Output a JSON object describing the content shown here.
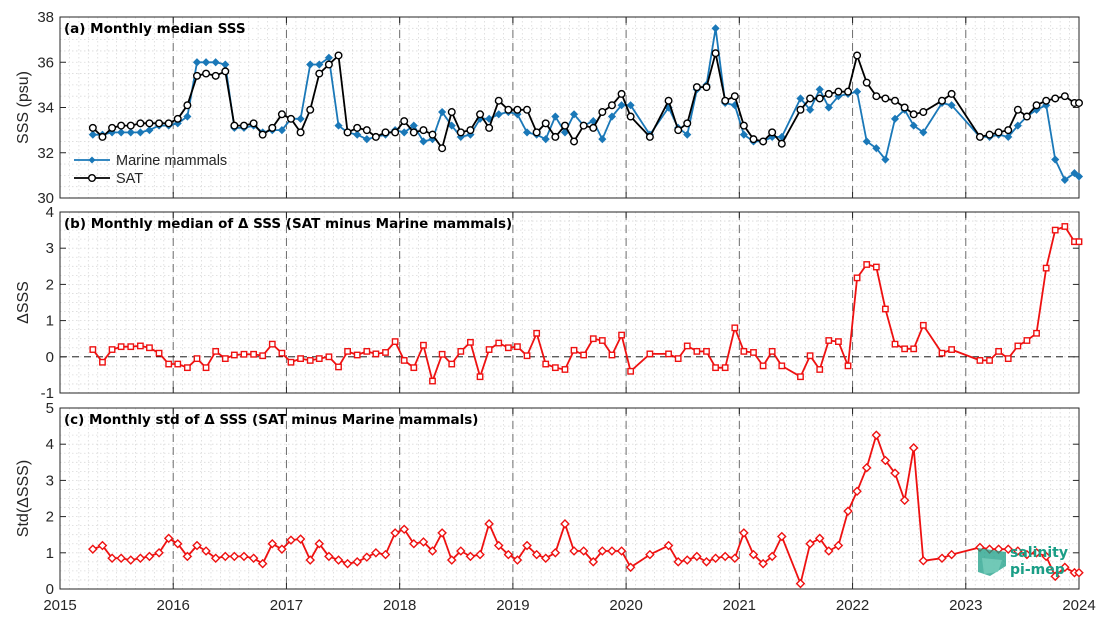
{
  "figure": {
    "xticks": [
      "2015",
      "2016",
      "2017",
      "2018",
      "2019",
      "2020",
      "2021",
      "2022",
      "2023",
      "2024"
    ],
    "watermark": [
      "salinity",
      "pi-mep"
    ]
  },
  "colors": {
    "mammals": "#1a78b8",
    "sat": "#000000",
    "delta": "#ee1111",
    "grid_minor": "#d9d9d9",
    "year_lines": "#6e6e6e",
    "watermark": "#1a9e86"
  },
  "chart_data": [
    {
      "type": "line",
      "title": "(a) Monthly median SSS",
      "ylabel": "SSS (psu)",
      "xlim": [
        2015,
        2024
      ],
      "ylim": [
        30,
        38
      ],
      "yticks": [
        "30",
        "32",
        "34",
        "36",
        "38"
      ],
      "legend_position": "bottom-left",
      "series": [
        {
          "name": "Marine mammals",
          "marker": "diamond",
          "color": "#1a78b8",
          "x": [
            2015.29,
            2015.375,
            2015.46,
            2015.54,
            2015.625,
            2015.71,
            2015.79,
            2015.875,
            2015.96,
            2016.04,
            2016.125,
            2016.21,
            2016.29,
            2016.375,
            2016.46,
            2016.54,
            2016.625,
            2016.71,
            2016.79,
            2016.875,
            2016.96,
            2017.04,
            2017.125,
            2017.21,
            2017.29,
            2017.375,
            2017.46,
            2017.54,
            2017.625,
            2017.71,
            2017.79,
            2017.875,
            2017.96,
            2018.04,
            2018.125,
            2018.21,
            2018.29,
            2018.375,
            2018.46,
            2018.54,
            2018.625,
            2018.71,
            2018.79,
            2018.875,
            2018.96,
            2019.04,
            2019.125,
            2019.21,
            2019.29,
            2019.375,
            2019.46,
            2019.54,
            2019.625,
            2019.71,
            2019.79,
            2019.875,
            2019.96,
            2020.04,
            2020.21,
            2020.375,
            2020.46,
            2020.54,
            2020.625,
            2020.71,
            2020.79,
            2020.875,
            2020.96,
            2021.04,
            2021.125,
            2021.21,
            2021.29,
            2021.375,
            2021.54,
            2021.625,
            2021.71,
            2021.79,
            2021.875,
            2021.96,
            2022.04,
            2022.125,
            2022.21,
            2022.29,
            2022.375,
            2022.46,
            2022.54,
            2022.625,
            2022.79,
            2022.875,
            2023.125,
            2023.21,
            2023.29,
            2023.375,
            2023.46,
            2023.54,
            2023.625,
            2023.71,
            2023.79,
            2023.875,
            2023.96
          ],
          "y": [
            32.8,
            32.8,
            32.9,
            32.9,
            32.9,
            32.9,
            33.0,
            33.2,
            33.2,
            33.3,
            33.6,
            36.0,
            36.0,
            36.0,
            35.9,
            33.1,
            33.1,
            33.2,
            32.9,
            33.0,
            33.0,
            33.5,
            33.5,
            35.9,
            35.9,
            36.2,
            33.2,
            32.9,
            32.8,
            32.6,
            32.7,
            32.8,
            33.0,
            32.9,
            33.2,
            32.5,
            32.6,
            33.8,
            33.2,
            32.7,
            32.8,
            33.5,
            33.5,
            33.7,
            33.8,
            33.7,
            32.9,
            32.8,
            32.6,
            33.6,
            32.9,
            33.7,
            33.2,
            33.4,
            32.6,
            33.6,
            34.1,
            34.1,
            32.8,
            34.0,
            33.1,
            32.8,
            34.8,
            35.0,
            37.5,
            34.2,
            34.1,
            32.8,
            32.5,
            32.5,
            32.7,
            32.7,
            34.4,
            33.9,
            34.8,
            34.0,
            34.5,
            34.6,
            34.7,
            32.5,
            32.2,
            31.7,
            33.5,
            33.9,
            33.2,
            32.9,
            34.2,
            34.1,
            32.7,
            32.7,
            32.8,
            32.7,
            33.2,
            33.6,
            33.9,
            34.1,
            31.7,
            30.8,
            31.1
          ],
          "x_extra": [
            2024.0
          ],
          "y_extra": [
            30.95
          ]
        },
        {
          "name": "SAT",
          "marker": "circle",
          "color": "#000000",
          "x": [
            2015.29,
            2015.375,
            2015.46,
            2015.54,
            2015.625,
            2015.71,
            2015.79,
            2015.875,
            2015.96,
            2016.04,
            2016.125,
            2016.21,
            2016.29,
            2016.375,
            2016.46,
            2016.54,
            2016.625,
            2016.71,
            2016.79,
            2016.875,
            2016.96,
            2017.04,
            2017.125,
            2017.21,
            2017.29,
            2017.375,
            2017.46,
            2017.54,
            2017.625,
            2017.71,
            2017.79,
            2017.875,
            2017.96,
            2018.04,
            2018.125,
            2018.21,
            2018.29,
            2018.375,
            2018.46,
            2018.54,
            2018.625,
            2018.71,
            2018.79,
            2018.875,
            2018.96,
            2019.04,
            2019.125,
            2019.21,
            2019.29,
            2019.375,
            2019.46,
            2019.54,
            2019.625,
            2019.71,
            2019.79,
            2019.875,
            2019.96,
            2020.04,
            2020.21,
            2020.375,
            2020.46,
            2020.54,
            2020.625,
            2020.71,
            2020.79,
            2020.875,
            2020.96,
            2021.04,
            2021.125,
            2021.21,
            2021.29,
            2021.375,
            2021.54,
            2021.625,
            2021.71,
            2021.79,
            2021.875,
            2021.96,
            2022.04,
            2022.125,
            2022.21,
            2022.29,
            2022.375,
            2022.46,
            2022.54,
            2022.625,
            2022.79,
            2022.875,
            2023.125,
            2023.21,
            2023.29,
            2023.375,
            2023.46,
            2023.54,
            2023.625,
            2023.71,
            2023.79,
            2023.875,
            2023.96,
            2024.0
          ],
          "y": [
            33.1,
            32.7,
            33.1,
            33.2,
            33.2,
            33.3,
            33.3,
            33.3,
            33.3,
            33.5,
            34.1,
            35.4,
            35.5,
            35.4,
            35.6,
            33.2,
            33.2,
            33.3,
            32.8,
            33.1,
            33.7,
            33.5,
            32.9,
            33.9,
            35.5,
            35.9,
            36.3,
            32.9,
            33.1,
            33.0,
            32.7,
            32.9,
            32.9,
            33.4,
            32.9,
            33.0,
            32.8,
            32.2,
            33.8,
            32.9,
            33.0,
            33.7,
            33.1,
            34.3,
            33.9,
            33.9,
            33.9,
            32.9,
            33.3,
            32.7,
            33.2,
            32.5,
            33.2,
            33.1,
            33.8,
            34.1,
            34.6,
            33.6,
            32.7,
            34.3,
            33.0,
            33.3,
            34.9,
            34.9,
            36.4,
            34.3,
            34.5,
            33.2,
            32.6,
            32.5,
            32.9,
            32.4,
            33.9,
            34.4,
            34.4,
            34.6,
            34.7,
            34.7,
            36.3,
            35.1,
            34.5,
            34.4,
            34.3,
            34.0,
            33.7,
            33.8,
            34.3,
            34.6,
            32.7,
            32.8,
            32.9,
            33.0,
            33.9,
            33.6,
            34.1,
            34.3,
            34.4,
            34.5,
            34.2,
            34.2
          ]
        }
      ]
    },
    {
      "type": "line",
      "title": "(b) Monthly median of Δ SSS (SAT minus Marine mammals)",
      "ylabel": "ΔSSS",
      "xlim": [
        2015,
        2024
      ],
      "ylim": [
        -1,
        4
      ],
      "yticks": [
        "-1",
        "0",
        "1",
        "2",
        "3",
        "4"
      ],
      "zero_line": true,
      "series": [
        {
          "name": "",
          "marker": "square",
          "color": "#ee1111",
          "x": [
            2015.29,
            2015.375,
            2015.46,
            2015.54,
            2015.625,
            2015.71,
            2015.79,
            2015.875,
            2015.96,
            2016.04,
            2016.125,
            2016.21,
            2016.29,
            2016.375,
            2016.46,
            2016.54,
            2016.625,
            2016.71,
            2016.79,
            2016.875,
            2016.96,
            2017.04,
            2017.125,
            2017.21,
            2017.29,
            2017.375,
            2017.46,
            2017.54,
            2017.625,
            2017.71,
            2017.79,
            2017.875,
            2017.96,
            2018.04,
            2018.125,
            2018.21,
            2018.29,
            2018.375,
            2018.46,
            2018.54,
            2018.625,
            2018.71,
            2018.79,
            2018.875,
            2018.96,
            2019.04,
            2019.125,
            2019.21,
            2019.29,
            2019.375,
            2019.46,
            2019.54,
            2019.625,
            2019.71,
            2019.79,
            2019.875,
            2019.96,
            2020.04,
            2020.21,
            2020.375,
            2020.46,
            2020.54,
            2020.625,
            2020.71,
            2020.79,
            2020.875,
            2020.96,
            2021.04,
            2021.125,
            2021.21,
            2021.29,
            2021.375,
            2021.54,
            2021.625,
            2021.71,
            2021.79,
            2021.875,
            2021.96,
            2022.04,
            2022.125,
            2022.21,
            2022.29,
            2022.375,
            2022.46,
            2022.54,
            2022.625,
            2022.79,
            2022.875,
            2023.125,
            2023.21,
            2023.29,
            2023.375,
            2023.46,
            2023.54,
            2023.625,
            2023.71,
            2023.79,
            2023.875,
            2023.96,
            2024.0
          ],
          "y": [
            0.2,
            -0.15,
            0.2,
            0.28,
            0.28,
            0.3,
            0.25,
            0.1,
            -0.2,
            -0.2,
            -0.3,
            -0.05,
            -0.3,
            0.15,
            -0.05,
            0.05,
            0.07,
            0.07,
            0.03,
            0.35,
            0.1,
            -0.15,
            -0.05,
            -0.1,
            -0.05,
            0.0,
            -0.28,
            0.15,
            0.05,
            0.15,
            0.08,
            0.12,
            0.42,
            -0.1,
            -0.3,
            0.32,
            -0.67,
            0.07,
            -0.2,
            0.15,
            0.4,
            -0.55,
            0.2,
            0.38,
            0.25,
            0.28,
            0.03,
            0.65,
            -0.2,
            -0.3,
            -0.35,
            0.18,
            0.05,
            0.5,
            0.45,
            0.05,
            0.6,
            -0.4,
            0.08,
            0.08,
            -0.05,
            0.3,
            0.15,
            0.15,
            -0.3,
            -0.3,
            0.8,
            0.15,
            0.12,
            -0.25,
            0.15,
            -0.25,
            -0.55,
            0.03,
            -0.35,
            0.45,
            0.42,
            -0.25,
            2.18,
            2.55,
            2.48,
            1.32,
            0.35,
            0.22,
            0.22,
            0.87,
            0.1,
            0.2,
            -0.1,
            -0.1,
            0.15,
            -0.05,
            0.3,
            0.45,
            0.65,
            2.45,
            3.5,
            3.6,
            3.18,
            3.18
          ]
        }
      ]
    },
    {
      "type": "line",
      "title": "(c) Monthly std of Δ SSS (SAT minus Marine mammals)",
      "ylabel": "Std(ΔSSS)",
      "xlim": [
        2015,
        2024
      ],
      "ylim": [
        0,
        5
      ],
      "yticks": [
        "0",
        "1",
        "2",
        "3",
        "4",
        "5"
      ],
      "series": [
        {
          "name": "",
          "marker": "diamond",
          "color": "#ee1111",
          "x": [
            2015.29,
            2015.375,
            2015.46,
            2015.54,
            2015.625,
            2015.71,
            2015.79,
            2015.875,
            2015.96,
            2016.04,
            2016.125,
            2016.21,
            2016.29,
            2016.375,
            2016.46,
            2016.54,
            2016.625,
            2016.71,
            2016.79,
            2016.875,
            2016.96,
            2017.04,
            2017.125,
            2017.21,
            2017.29,
            2017.375,
            2017.46,
            2017.54,
            2017.625,
            2017.71,
            2017.79,
            2017.875,
            2017.96,
            2018.04,
            2018.125,
            2018.21,
            2018.29,
            2018.375,
            2018.46,
            2018.54,
            2018.625,
            2018.71,
            2018.79,
            2018.875,
            2018.96,
            2019.04,
            2019.125,
            2019.21,
            2019.29,
            2019.375,
            2019.46,
            2019.54,
            2019.625,
            2019.71,
            2019.79,
            2019.875,
            2019.96,
            2020.04,
            2020.21,
            2020.375,
            2020.46,
            2020.54,
            2020.625,
            2020.71,
            2020.79,
            2020.875,
            2020.96,
            2021.04,
            2021.125,
            2021.21,
            2021.29,
            2021.375,
            2021.54,
            2021.625,
            2021.71,
            2021.79,
            2021.875,
            2021.96,
            2022.04,
            2022.125,
            2022.21,
            2022.29,
            2022.375,
            2022.46,
            2022.54,
            2022.625,
            2022.79,
            2022.875,
            2023.125,
            2023.21,
            2023.29,
            2023.375,
            2023.46,
            2023.54,
            2023.625,
            2023.71,
            2023.79,
            2023.875,
            2023.96,
            2024.0
          ],
          "y": [
            1.1,
            1.2,
            0.85,
            0.85,
            0.8,
            0.85,
            0.9,
            1.0,
            1.4,
            1.25,
            0.9,
            1.2,
            1.05,
            0.85,
            0.9,
            0.9,
            0.9,
            0.85,
            0.7,
            1.25,
            1.1,
            1.35,
            1.38,
            0.8,
            1.25,
            0.9,
            0.8,
            0.7,
            0.75,
            0.88,
            1.0,
            0.95,
            1.55,
            1.65,
            1.25,
            1.3,
            1.05,
            1.55,
            0.8,
            1.05,
            0.9,
            0.95,
            1.8,
            1.2,
            0.95,
            0.8,
            1.2,
            0.95,
            0.85,
            1.0,
            1.8,
            1.05,
            1.05,
            0.75,
            1.05,
            1.05,
            1.05,
            0.6,
            0.95,
            1.2,
            0.75,
            0.8,
            0.9,
            0.75,
            0.85,
            0.9,
            0.85,
            1.55,
            0.95,
            0.7,
            0.9,
            1.45,
            0.15,
            1.25,
            1.4,
            1.05,
            1.2,
            2.15,
            2.7,
            3.35,
            4.25,
            3.55,
            3.2,
            2.45,
            3.9,
            0.78,
            0.85,
            0.95,
            1.15,
            1.1,
            1.1,
            1.1,
            1.05,
            0.95,
            1.0,
            0.9,
            0.35,
            0.6,
            0.45,
            0.45
          ]
        }
      ]
    }
  ]
}
